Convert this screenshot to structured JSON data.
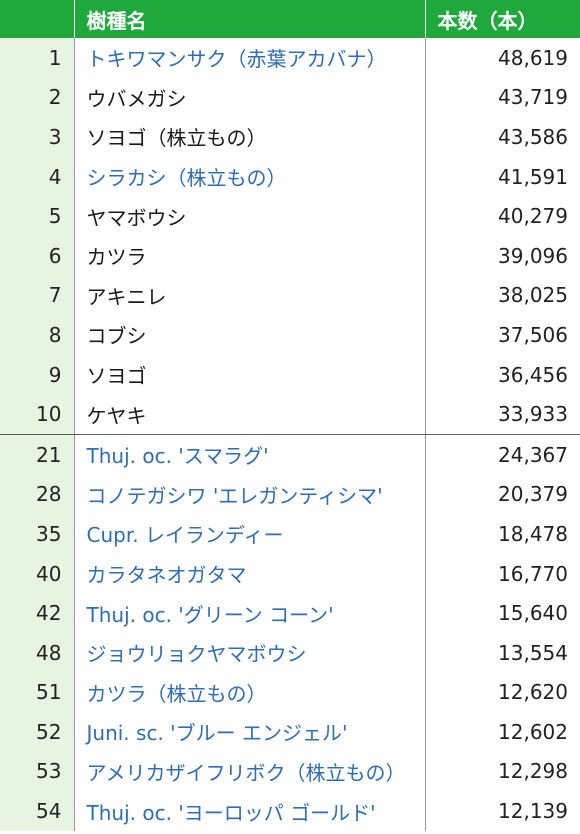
{
  "table": {
    "headers": {
      "rank": "",
      "name": "樹種名",
      "count": "本数（本）"
    },
    "group_a": [
      {
        "rank": "1",
        "name": "トキワマンサク（赤葉アカバナ）",
        "count": "48,619",
        "color": "blue"
      },
      {
        "rank": "2",
        "name": "ウバメガシ",
        "count": "43,719",
        "color": "black"
      },
      {
        "rank": "3",
        "name": "ソヨゴ（株立もの）",
        "count": "43,586",
        "color": "black"
      },
      {
        "rank": "4",
        "name": "シラカシ（株立もの）",
        "count": "41,591",
        "color": "blue"
      },
      {
        "rank": "5",
        "name": "ヤマボウシ",
        "count": "40,279",
        "color": "black"
      },
      {
        "rank": "6",
        "name": "カツラ",
        "count": "39,096",
        "color": "black"
      },
      {
        "rank": "7",
        "name": "アキニレ",
        "count": "38,025",
        "color": "black"
      },
      {
        "rank": "8",
        "name": "コブシ",
        "count": "37,506",
        "color": "black"
      },
      {
        "rank": "9",
        "name": "ソヨゴ",
        "count": "36,456",
        "color": "black"
      },
      {
        "rank": "10",
        "name": "ケヤキ",
        "count": "33,933",
        "color": "black"
      }
    ],
    "group_b": [
      {
        "rank": "21",
        "name": "Thuj. oc. 'スマラグ'",
        "count": "24,367",
        "color": "blue"
      },
      {
        "rank": "28",
        "name": "コノテガシワ 'エレガンティシマ'",
        "count": "20,379",
        "color": "blue"
      },
      {
        "rank": "35",
        "name": "Cupr. レイランディー",
        "count": "18,478",
        "color": "blue"
      },
      {
        "rank": "40",
        "name": "カラタネオガタマ",
        "count": "16,770",
        "color": "blue"
      },
      {
        "rank": "42",
        "name": "Thuj. oc. 'グリーン コーン'",
        "count": "15,640",
        "color": "blue"
      },
      {
        "rank": "48",
        "name": "ジョウリョクヤマボウシ",
        "count": "13,554",
        "color": "blue"
      },
      {
        "rank": "51",
        "name": "カツラ（株立もの）",
        "count": "12,620",
        "color": "blue"
      },
      {
        "rank": "52",
        "name": "Juni. sc. 'ブルー エンジェル'",
        "count": "12,602",
        "color": "blue"
      },
      {
        "rank": "53",
        "name": "アメリカザイフリボク（株立もの）",
        "count": "12,298",
        "color": "blue"
      },
      {
        "rank": "54",
        "name": "Thuj. oc. 'ヨーロッパ ゴールド'",
        "count": "12,139",
        "color": "blue"
      }
    ]
  }
}
